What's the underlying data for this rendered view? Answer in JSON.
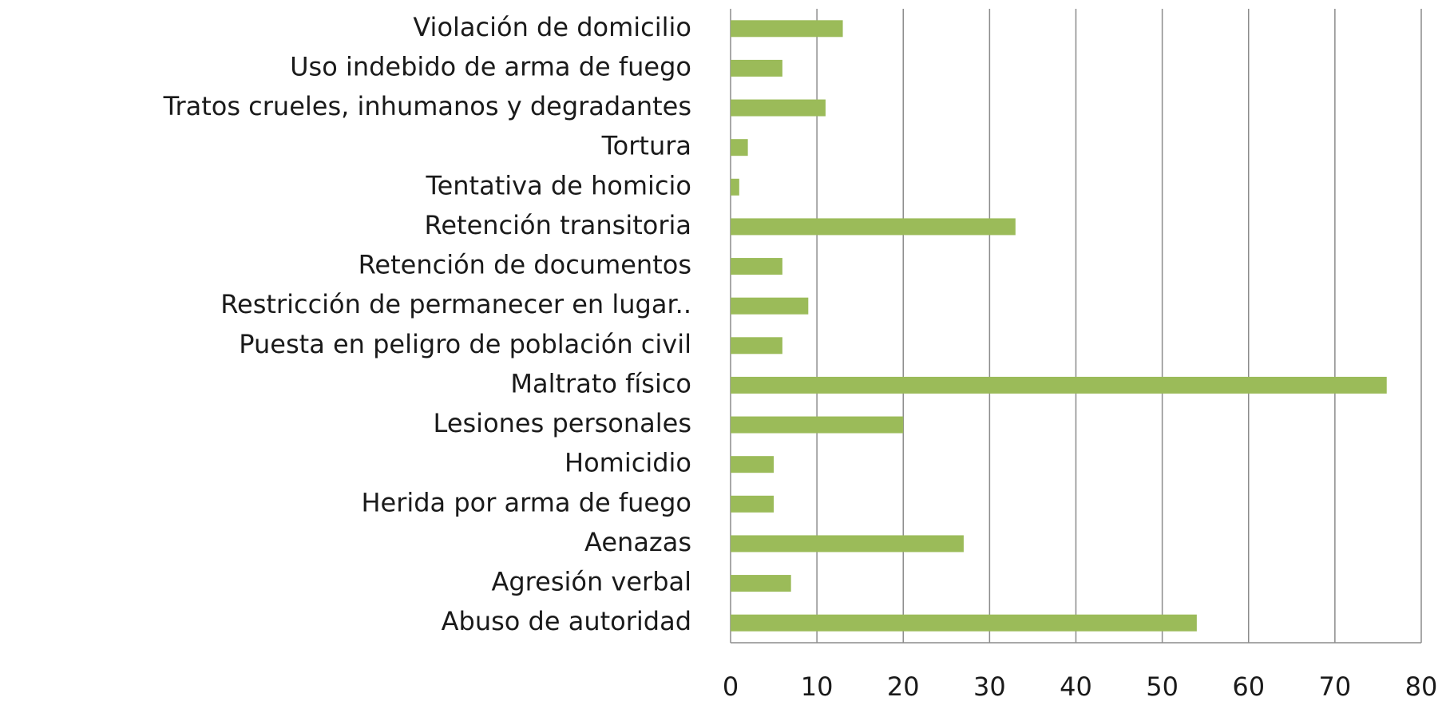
{
  "chart_data": {
    "type": "bar",
    "orientation": "horizontal",
    "categories": [
      "Violación de domicilio",
      "Uso indebido de arma de fuego",
      "Tratos crueles, inhumanos y degradantes",
      "Tortura",
      "Tentativa de homicio",
      "Retención transitoria",
      "Retención de documentos",
      "Restricción de permanecer en lugar..",
      "Puesta en peligro de población civil",
      "Maltrato físico",
      "Lesiones personales",
      "Homicidio",
      "Herida por arma de fuego",
      "Aenazas",
      "Agresión verbal",
      "Abuso de autoridad"
    ],
    "values": [
      13,
      6,
      11,
      2,
      1,
      33,
      6,
      9,
      6,
      76,
      20,
      5,
      5,
      27,
      7,
      54
    ],
    "color": "#9bbb59",
    "xlim": [
      0,
      80
    ],
    "xticks": [
      0,
      10,
      20,
      30,
      40,
      50,
      60,
      70,
      80
    ],
    "grid": true
  }
}
